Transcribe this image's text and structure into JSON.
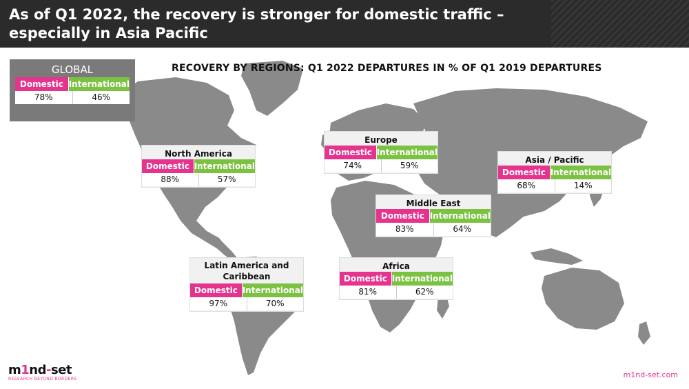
{
  "header": {
    "title": "As of Q1 2022, the recovery is stronger for domestic traffic – especially in Asia Pacific"
  },
  "subtitle": "RECOVERY BY REGIONS: Q1 2022 DEPARTURES IN % OF Q1 2019 DEPARTURES",
  "labels": {
    "domestic": "Domestic",
    "international": "International"
  },
  "colors": {
    "domestic": "#e5348e",
    "international": "#7cc242",
    "map": "#8a8a8a",
    "header": "#2b2b2b"
  },
  "global": {
    "name": "GLOBAL",
    "domestic": "78%",
    "international": "46%"
  },
  "chart_data": {
    "type": "table",
    "title": "RECOVERY BY REGIONS: Q1 2022 DEPARTURES IN % OF Q1 2019 DEPARTURES",
    "columns": [
      "Domestic",
      "International"
    ],
    "rows": [
      {
        "region": "North America",
        "domestic": 88,
        "international": 57
      },
      {
        "region": "Europe",
        "domestic": 74,
        "international": 59
      },
      {
        "region": "Asia / Pacific",
        "domestic": 68,
        "international": 14
      },
      {
        "region": "Middle East",
        "domestic": 83,
        "international": 64
      },
      {
        "region": "Latin America and Caribbean",
        "domestic": 97,
        "international": 70
      },
      {
        "region": "Africa",
        "domestic": 81,
        "international": 62
      }
    ]
  },
  "regions": [
    {
      "name": "North America",
      "domestic": "88%",
      "international": "57%"
    },
    {
      "name": "Europe",
      "domestic": "74%",
      "international": "59%"
    },
    {
      "name": "Asia / Pacific",
      "domestic": "68%",
      "international": "14%"
    },
    {
      "name": "Middle East",
      "domestic": "83%",
      "international": "64%"
    },
    {
      "name": "Latin America and Caribbean",
      "domestic": "97%",
      "international": "70%"
    },
    {
      "name": "Africa",
      "domestic": "81%",
      "international": "62%"
    }
  ],
  "footer": {
    "logo_pre": "m",
    "logo_accent": "1",
    "logo_mid": "nd",
    "logo_accent2": "-",
    "logo_post": "set",
    "tagline": "RESEARCH BEYOND BORDERS",
    "url": "m1nd-set.com"
  }
}
